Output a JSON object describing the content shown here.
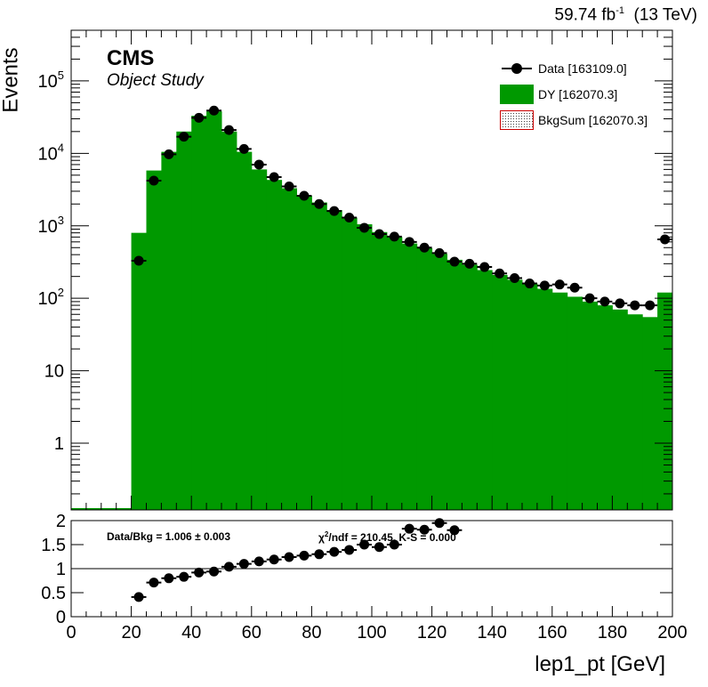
{
  "header": {
    "lumi_value": "59.74 fb",
    "lumi_exp": "-1",
    "energy": "(13 TeV)",
    "cms": "CMS",
    "extra": "Object Study"
  },
  "legend": {
    "data": "Data [163109.0]",
    "dy": "DY [162070.3]",
    "bkgsum": "BkgSum [162070.3]"
  },
  "ratio_stats": {
    "data_bkg_label": "Data/Bkg = 1.006",
    "data_bkg_err": "± 0.003",
    "chi2_prefix": "χ",
    "chi2_sup": "2",
    "chi2_suffix": "/ndf = 210.45,   K-S = 0.000"
  },
  "colors": {
    "dy_fill": "#009900",
    "bkgsum_border": "#cc0000",
    "data_marker": "#000000"
  },
  "chart_data": [
    {
      "type": "bar",
      "ylabel": "Events",
      "xlim": [
        0,
        200
      ],
      "ylim": [
        0.12,
        500000
      ],
      "log_y": true,
      "y_ticks": [
        "1",
        "10",
        "10^2",
        "10^3",
        "10^4",
        "10^5"
      ],
      "bin_edges": [
        0,
        5,
        10,
        15,
        20,
        25,
        30,
        35,
        40,
        45,
        50,
        55,
        60,
        65,
        70,
        75,
        80,
        85,
        90,
        95,
        100,
        105,
        110,
        115,
        120,
        125,
        130,
        135,
        140,
        145,
        150,
        155,
        160,
        165,
        170,
        175,
        180,
        185,
        190,
        195,
        200
      ],
      "series": [
        {
          "name": "DY",
          "values": [
            0,
            0,
            0,
            0,
            800,
            5800,
            10500,
            20000,
            33000,
            38000,
            20000,
            10500,
            6000,
            4300,
            3300,
            2600,
            2100,
            1650,
            1300,
            1050,
            820,
            700,
            570,
            490,
            410,
            340,
            290,
            245,
            210,
            180,
            160,
            135,
            120,
            105,
            90,
            80,
            70,
            60,
            55,
            120
          ]
        },
        {
          "name": "Data",
          "x": [
            22.5,
            27.5,
            32.5,
            37.5,
            42.5,
            47.5,
            52.5,
            57.5,
            62.5,
            67.5,
            72.5,
            77.5,
            82.5,
            87.5,
            92.5,
            97.5,
            102.5,
            107.5,
            112.5,
            117.5,
            122.5,
            127.5,
            132.5,
            137.5,
            142.5,
            147.5,
            152.5,
            157.5,
            162.5,
            167.5,
            172.5,
            177.5,
            182.5,
            187.5,
            192.5,
            197.5
          ],
          "values": [
            330,
            4200,
            9700,
            17000,
            31000,
            39000,
            21000,
            11500,
            7000,
            4700,
            3500,
            2600,
            2000,
            1600,
            1300,
            940,
            770,
            710,
            600,
            500,
            420,
            320,
            300,
            270,
            220,
            190,
            160,
            150,
            155,
            140,
            100,
            90,
            85,
            80,
            80,
            650
          ]
        }
      ]
    },
    {
      "type": "scatter",
      "xlabel": "lep1_pt [GeV]",
      "xlim": [
        0,
        200
      ],
      "ylim": [
        0,
        2
      ],
      "x_ticks": [
        0,
        20,
        40,
        60,
        80,
        100,
        120,
        140,
        160,
        180,
        200
      ],
      "y_ticks": [
        "0",
        "0.5",
        "1",
        "1.5",
        "2"
      ],
      "reference_line": 1,
      "series": [
        {
          "name": "Data/Bkg",
          "x": [
            22.5,
            27.5,
            32.5,
            37.5,
            42.5,
            47.5,
            52.5,
            57.5,
            62.5,
            67.5,
            72.5,
            77.5,
            82.5,
            87.5,
            92.5,
            97.5,
            102.5,
            107.5,
            112.5,
            117.5,
            122.5,
            127.5
          ],
          "values": [
            0.41,
            0.71,
            0.8,
            0.83,
            0.92,
            0.94,
            1.04,
            1.1,
            1.15,
            1.19,
            1.24,
            1.27,
            1.3,
            1.35,
            1.39,
            1.5,
            1.45,
            1.5,
            1.83,
            1.81,
            1.95,
            1.8
          ]
        }
      ]
    }
  ]
}
